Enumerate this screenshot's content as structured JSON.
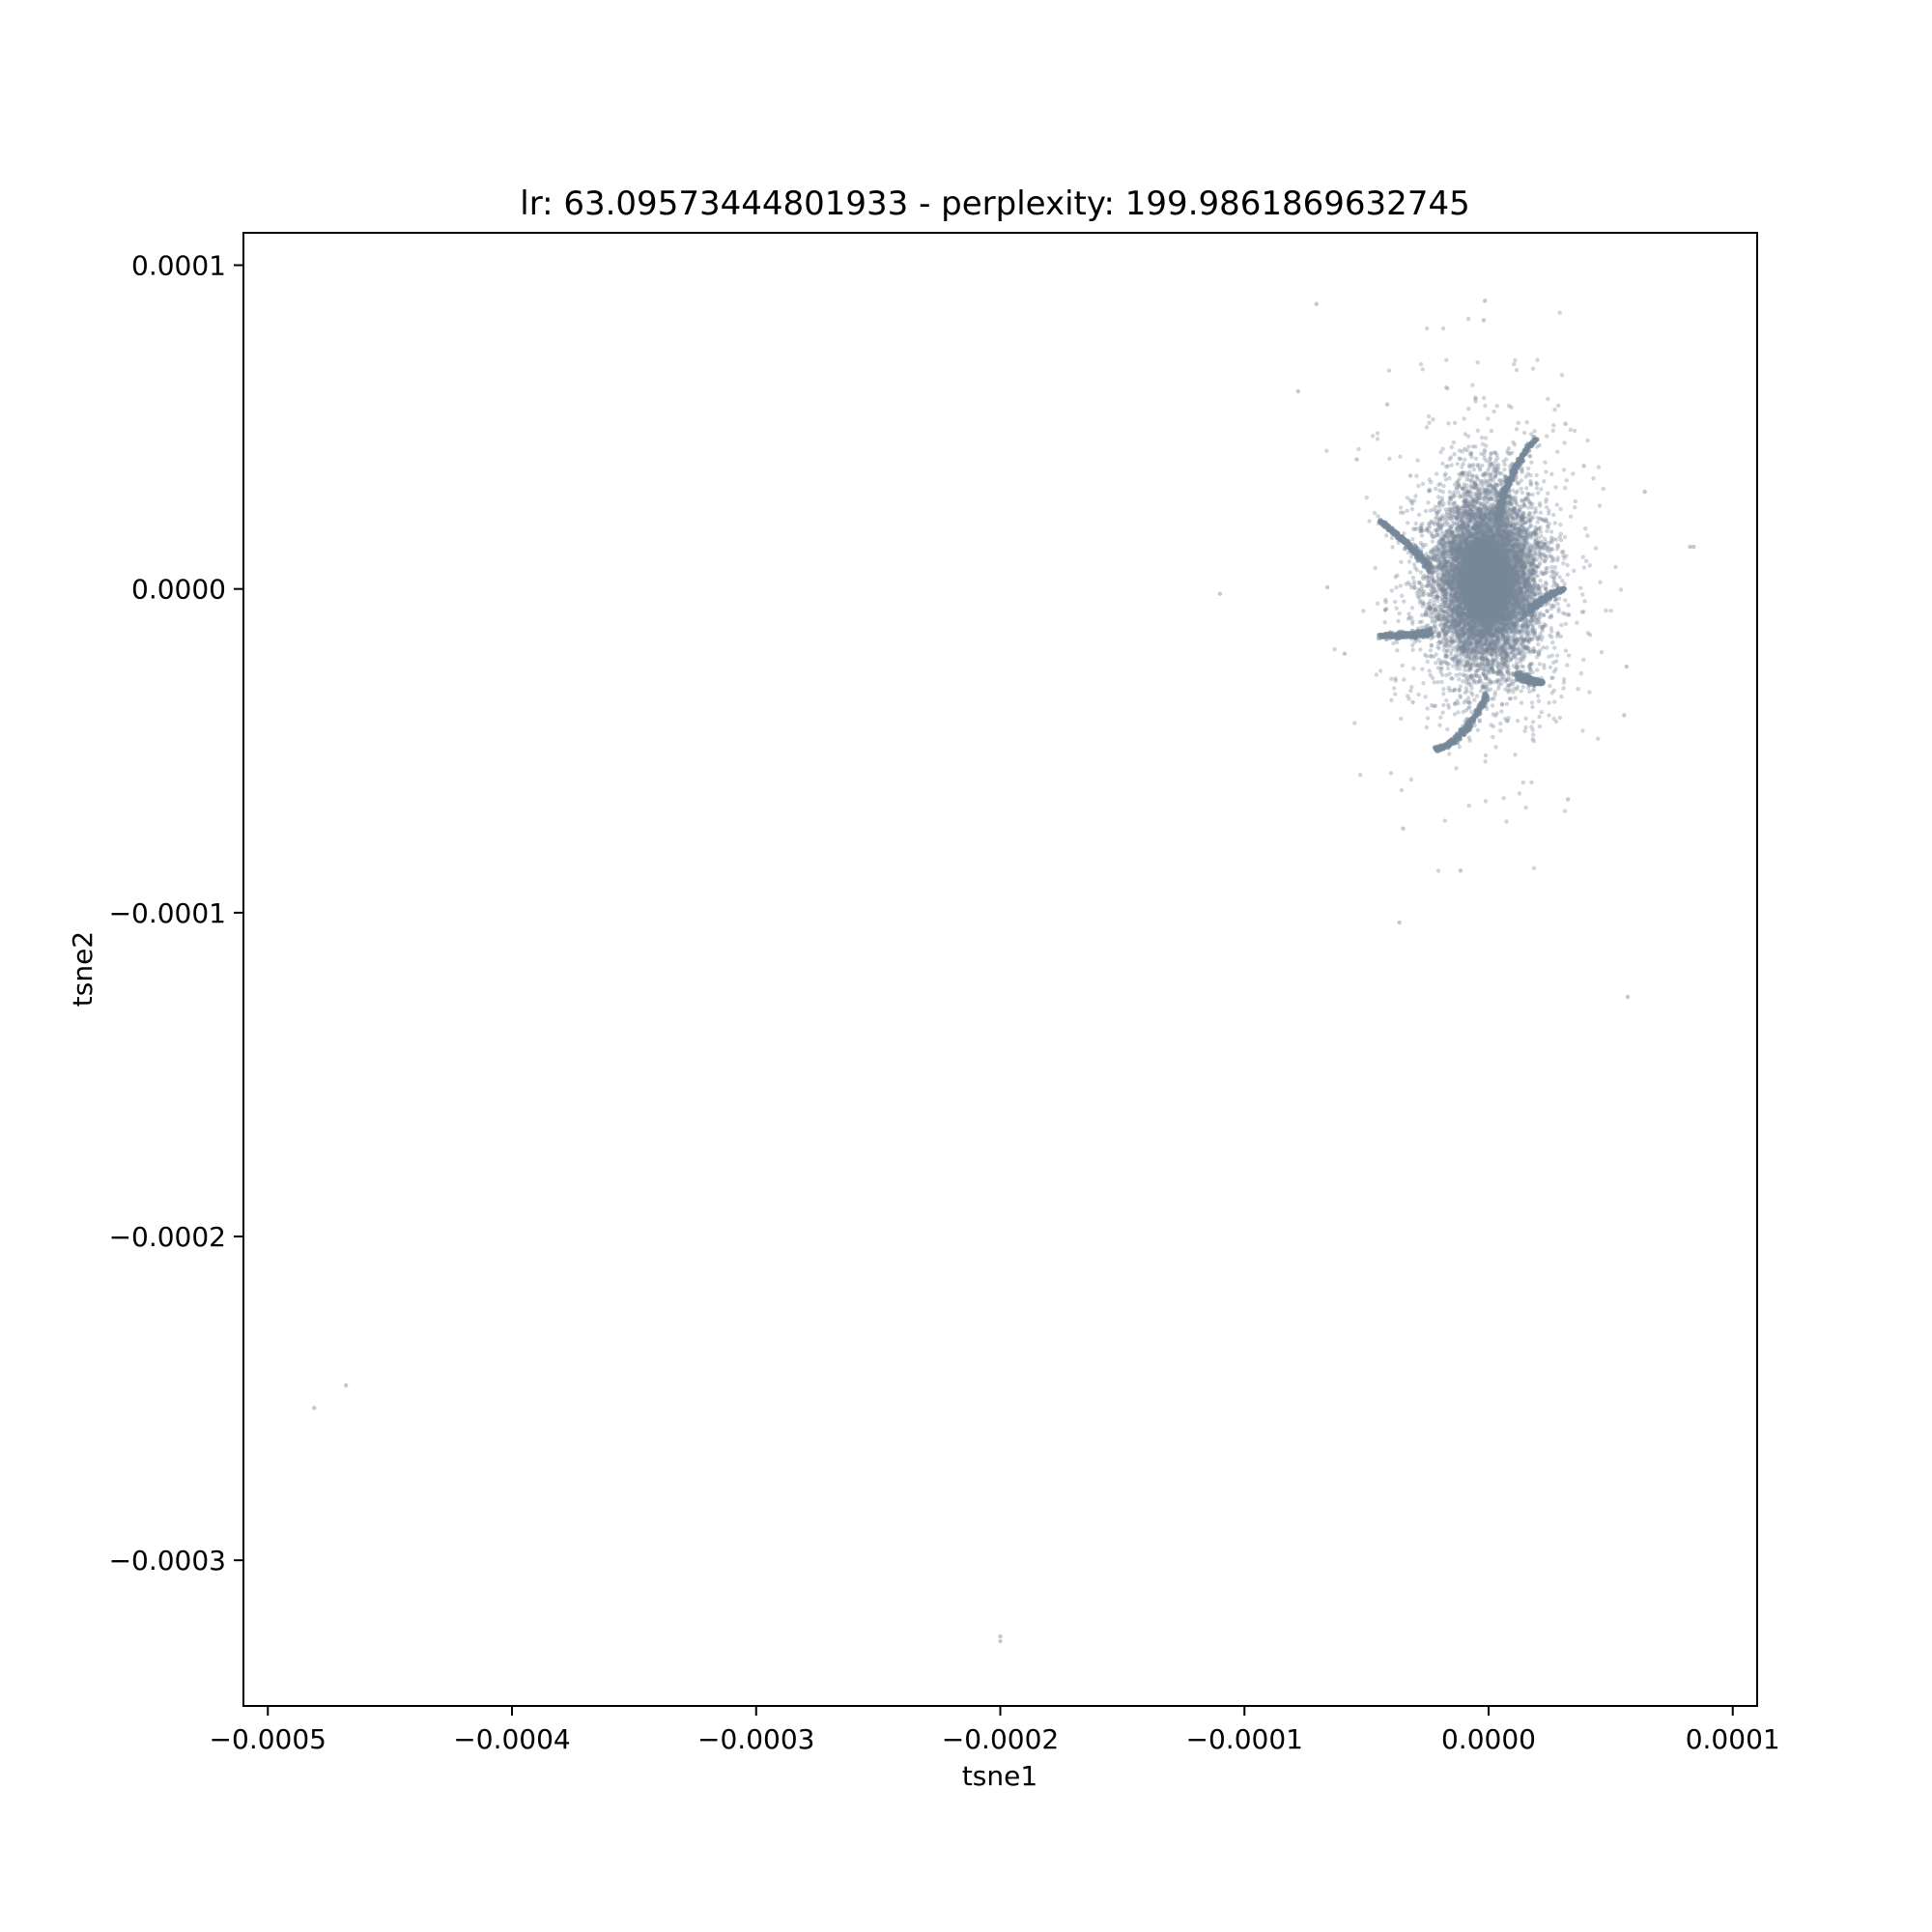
{
  "chart_data": {
    "type": "scatter",
    "title": "lr: 63.09573444801933 - perplexity: 199.9861869632745",
    "xlabel": "tsne1",
    "ylabel": "tsne2",
    "xlim": [
      -0.00051,
      0.00011
    ],
    "ylim": [
      -0.000345,
      0.00011
    ],
    "xticks": [
      {
        "value": -0.0005,
        "label": "−0.0005"
      },
      {
        "value": -0.0004,
        "label": "−0.0004"
      },
      {
        "value": -0.0003,
        "label": "−0.0003"
      },
      {
        "value": -0.0002,
        "label": "−0.0002"
      },
      {
        "value": -0.0001,
        "label": "−0.0001"
      },
      {
        "value": 0.0,
        "label": "0.0000"
      },
      {
        "value": 0.0001,
        "label": "0.0001"
      }
    ],
    "yticks": [
      {
        "value": 0.0001,
        "label": "0.0001"
      },
      {
        "value": 0.0,
        "label": "0.0000"
      },
      {
        "value": -0.0001,
        "label": "−0.0001"
      },
      {
        "value": -0.0002,
        "label": "−0.0002"
      },
      {
        "value": -0.0003,
        "label": "−0.0003"
      }
    ],
    "grid": false,
    "legend": false,
    "point_color": "#778899",
    "cluster": {
      "center": [
        -1e-06,
        2.5e-06
      ],
      "spread": [
        1.05e-05,
        1.35e-05
      ],
      "count": 9000
    },
    "arms": [
      {
        "from": [
          3.5e-06,
          2.1e-05
        ],
        "via": [
          8e-06,
          3.7e-05
        ],
        "to": [
          1.95e-05,
          4.65e-05
        ]
      },
      {
        "from": [
          -2.4e-05,
          6.5e-06
        ],
        "via": [
          -3.3e-05,
          1.45e-05
        ],
        "to": [
          -4.45e-05,
          2.1e-05
        ]
      },
      {
        "from": [
          -2.4e-05,
          -1.35e-05
        ],
        "via": [
          -3.3e-05,
          -1.45e-05
        ],
        "to": [
          -4.45e-05,
          -1.45e-05
        ]
      },
      {
        "from": [
          1.7e-05,
          -6.5e-06
        ],
        "via": [
          2.3e-05,
          -2e-06
        ],
        "to": [
          3.1e-05,
          0.0
        ]
      },
      {
        "from": [
          1.2e-05,
          -2.65e-05
        ],
        "via": [
          1.8e-05,
          -2.9e-05
        ],
        "to": [
          2.2e-05,
          -2.9e-05
        ]
      },
      {
        "from": [
          -5e-07,
          -3.25e-05
        ],
        "via": [
          -1.1e-05,
          -4.85e-05
        ],
        "to": [
          -2.2e-05,
          -4.95e-05
        ]
      }
    ],
    "outliers": [
      {
        "x": -7.05e-05,
        "y": 8.8e-05
      },
      {
        "x": -1.5e-06,
        "y": 8.9e-05
      },
      {
        "x": -2e-06,
        "y": 8.3e-05
      },
      {
        "x": -7.8e-05,
        "y": 6.1e-05
      },
      {
        "x": -4.15e-05,
        "y": 5.7e-05
      },
      {
        "x": 3.15e-05,
        "y": 5.1e-05
      },
      {
        "x": -5.4e-05,
        "y": 4e-05
      },
      {
        "x": 3.9e-05,
        "y": 3.8e-05
      },
      {
        "x": -3.2e-05,
        "y": 3.5e-05
      },
      {
        "x": 6.4e-05,
        "y": 3e-05
      },
      {
        "x": 8.25e-05,
        "y": 1.3e-05
      },
      {
        "x": 8.4e-05,
        "y": 1.3e-05
      },
      {
        "x": -0.00011,
        "y": -1.5e-06
      },
      {
        "x": -6.6e-05,
        "y": 5e-07
      },
      {
        "x": -5.9e-05,
        "y": -2e-05
      },
      {
        "x": 5.65e-05,
        "y": -2.4e-05
      },
      {
        "x": 5.55e-05,
        "y": -3.9e-05
      },
      {
        "x": -3.1e-05,
        "y": -3.5e-05
      },
      {
        "x": 3.25e-05,
        "y": -6.5e-05
      },
      {
        "x": -3.5e-05,
        "y": -7.4e-05
      },
      {
        "x": -1.15e-05,
        "y": -8.7e-05
      },
      {
        "x": -3.65e-05,
        "y": -0.000103
      },
      {
        "x": 5.7e-05,
        "y": -0.000126
      },
      {
        "x": -0.000481,
        "y": -0.000253
      },
      {
        "x": -0.000468,
        "y": -0.000246
      },
      {
        "x": -0.0002,
        "y": -0.000325
      },
      {
        "x": -0.0002,
        "y": -0.0003235
      }
    ]
  }
}
